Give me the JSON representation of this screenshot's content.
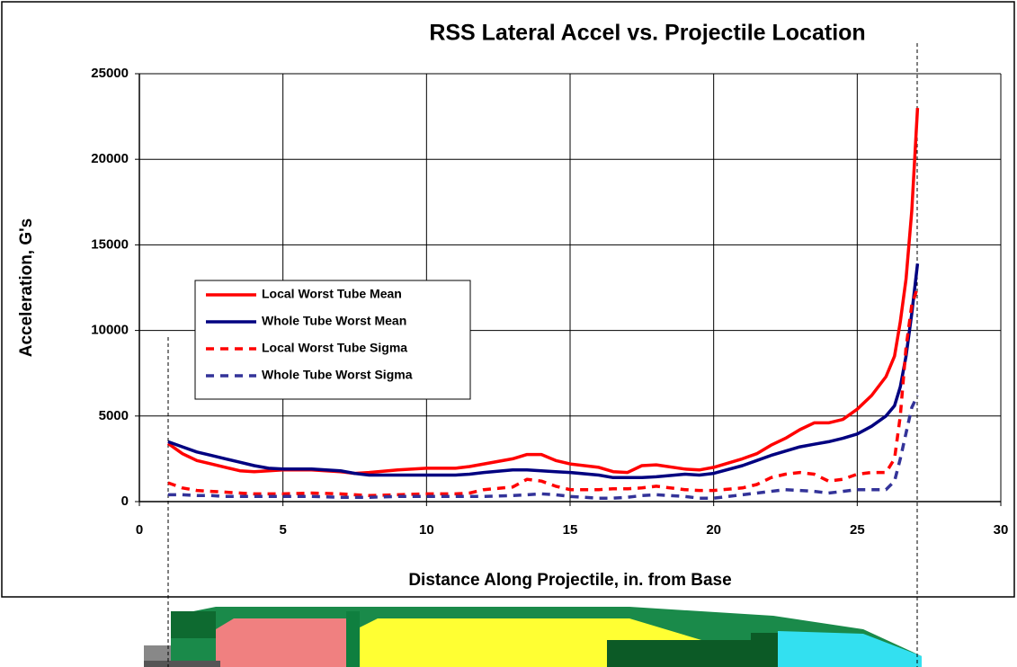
{
  "chart_data": {
    "type": "line",
    "title": "RSS Lateral Accel vs. Projectile Location",
    "x_label": "Distance Along Projectile, in. from Base",
    "y_label": "Acceleration, G's",
    "x": [
      1,
      1.5,
      2,
      2.5,
      3,
      3.5,
      4,
      4.5,
      5,
      6,
      7,
      7.5,
      8,
      9,
      10,
      11,
      11.5,
      12,
      13,
      13.5,
      14,
      14.5,
      15,
      16,
      16.5,
      17,
      17.5,
      18,
      19,
      19.5,
      20,
      21,
      21.5,
      22,
      22.5,
      23,
      23.5,
      24,
      24.5,
      25,
      25.5,
      26,
      26.3,
      26.5,
      26.7,
      26.9,
      27.1
    ],
    "series": [
      {
        "name": "Local Worst Tube Mean",
        "color": "#ff0000",
        "dash": false,
        "values": [
          3400,
          2800,
          2400,
          2200,
          2000,
          1800,
          1750,
          1800,
          1850,
          1850,
          1750,
          1650,
          1700,
          1850,
          1950,
          1950,
          2050,
          2200,
          2500,
          2750,
          2750,
          2400,
          2200,
          2000,
          1750,
          1700,
          2100,
          2150,
          1900,
          1850,
          2000,
          2500,
          2800,
          3300,
          3700,
          4200,
          4600,
          4600,
          4800,
          5400,
          6200,
          7300,
          8500,
          10500,
          13000,
          17000,
          23000
        ]
      },
      {
        "name": "Whole Tube Worst Mean",
        "color": "#000080",
        "dash": false,
        "values": [
          3500,
          3200,
          2900,
          2700,
          2500,
          2300,
          2100,
          1950,
          1900,
          1900,
          1800,
          1650,
          1550,
          1550,
          1550,
          1550,
          1600,
          1700,
          1850,
          1850,
          1800,
          1750,
          1700,
          1550,
          1400,
          1400,
          1400,
          1450,
          1600,
          1550,
          1650,
          2100,
          2400,
          2700,
          2950,
          3200,
          3350,
          3500,
          3700,
          3950,
          4400,
          5000,
          5600,
          6700,
          8500,
          11000,
          13900
        ]
      },
      {
        "name": "Local Worst Tube Sigma",
        "color": "#ff0000",
        "dash": true,
        "values": [
          1100,
          800,
          650,
          600,
          550,
          500,
          450,
          450,
          450,
          500,
          450,
          400,
          350,
          400,
          450,
          450,
          500,
          700,
          850,
          1300,
          1200,
          900,
          700,
          700,
          750,
          750,
          800,
          900,
          700,
          650,
          650,
          800,
          1000,
          1400,
          1600,
          1700,
          1600,
          1200,
          1300,
          1600,
          1700,
          1700,
          2500,
          5000,
          9000,
          11500,
          12500
        ]
      },
      {
        "name": "Whole Tube Worst Sigma",
        "color": "#333399",
        "dash": true,
        "values": [
          400,
          400,
          350,
          350,
          300,
          300,
          300,
          300,
          300,
          300,
          250,
          250,
          250,
          300,
          300,
          300,
          300,
          300,
          350,
          400,
          450,
          400,
          300,
          200,
          200,
          250,
          350,
          400,
          300,
          200,
          200,
          400,
          500,
          600,
          700,
          650,
          600,
          500,
          600,
          700,
          700,
          700,
          1200,
          2500,
          4000,
          5500,
          6200
        ]
      }
    ],
    "xlim": [
      0,
      30
    ],
    "xticks": [
      0,
      5,
      10,
      15,
      20,
      25,
      30
    ],
    "ylim": [
      0,
      25000
    ],
    "yticks": [
      0,
      5000,
      10000,
      15000,
      20000,
      25000
    ],
    "grid": true,
    "legend": "left"
  }
}
